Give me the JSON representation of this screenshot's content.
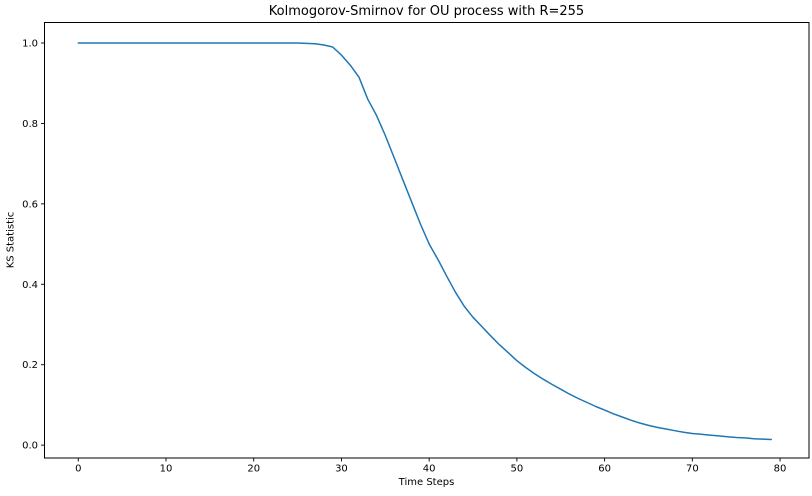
{
  "figure": {
    "background": "#ffffff"
  },
  "chart_data": {
    "type": "line",
    "title": "Kolmogorov-Smirnov for OU process with R=255",
    "xlabel": "Time Steps",
    "ylabel": "KS Statistic",
    "x_ticks": [
      0,
      10,
      20,
      30,
      40,
      50,
      60,
      70,
      80
    ],
    "y_ticks": [
      0.0,
      0.2,
      0.4,
      0.6,
      0.8,
      1.0
    ],
    "xlim": [
      -3.85,
      83.3
    ],
    "ylim": [
      -0.032,
      1.051
    ],
    "grid": false,
    "legend": "none",
    "line_color": "#1f77b4",
    "line_width": 1.5,
    "axis_color": "#000000",
    "x": [
      0,
      1,
      2,
      3,
      4,
      5,
      6,
      7,
      8,
      9,
      10,
      11,
      12,
      13,
      14,
      15,
      16,
      17,
      18,
      19,
      20,
      21,
      22,
      23,
      24,
      25,
      26,
      27,
      28,
      29,
      30,
      31,
      32,
      33,
      34,
      35,
      36,
      37,
      38,
      39,
      40,
      41,
      42,
      43,
      44,
      45,
      46,
      47,
      48,
      49,
      50,
      51,
      52,
      53,
      54,
      55,
      56,
      57,
      58,
      59,
      60,
      61,
      62,
      63,
      64,
      65,
      66,
      67,
      68,
      69,
      70,
      71,
      72,
      73,
      74,
      75,
      76,
      77,
      78,
      79
    ],
    "y": [
      1.0,
      1.0,
      1.0,
      1.0,
      1.0,
      1.0,
      1.0,
      1.0,
      1.0,
      1.0,
      1.0,
      1.0,
      1.0,
      1.0,
      1.0,
      1.0,
      1.0,
      1.0,
      1.0,
      1.0,
      1.0,
      1.0,
      1.0,
      1.0,
      1.0,
      1.0,
      0.999,
      0.998,
      0.995,
      0.99,
      0.97,
      0.945,
      0.915,
      0.86,
      0.82,
      0.77,
      0.715,
      0.66,
      0.605,
      0.55,
      0.5,
      0.462,
      0.42,
      0.38,
      0.345,
      0.318,
      0.295,
      0.272,
      0.25,
      0.23,
      0.21,
      0.193,
      0.178,
      0.164,
      0.151,
      0.139,
      0.127,
      0.116,
      0.106,
      0.096,
      0.087,
      0.078,
      0.07,
      0.062,
      0.055,
      0.049,
      0.044,
      0.04,
      0.036,
      0.032,
      0.029,
      0.027,
      0.025,
      0.023,
      0.021,
      0.019,
      0.018,
      0.016,
      0.015,
      0.014
    ]
  }
}
